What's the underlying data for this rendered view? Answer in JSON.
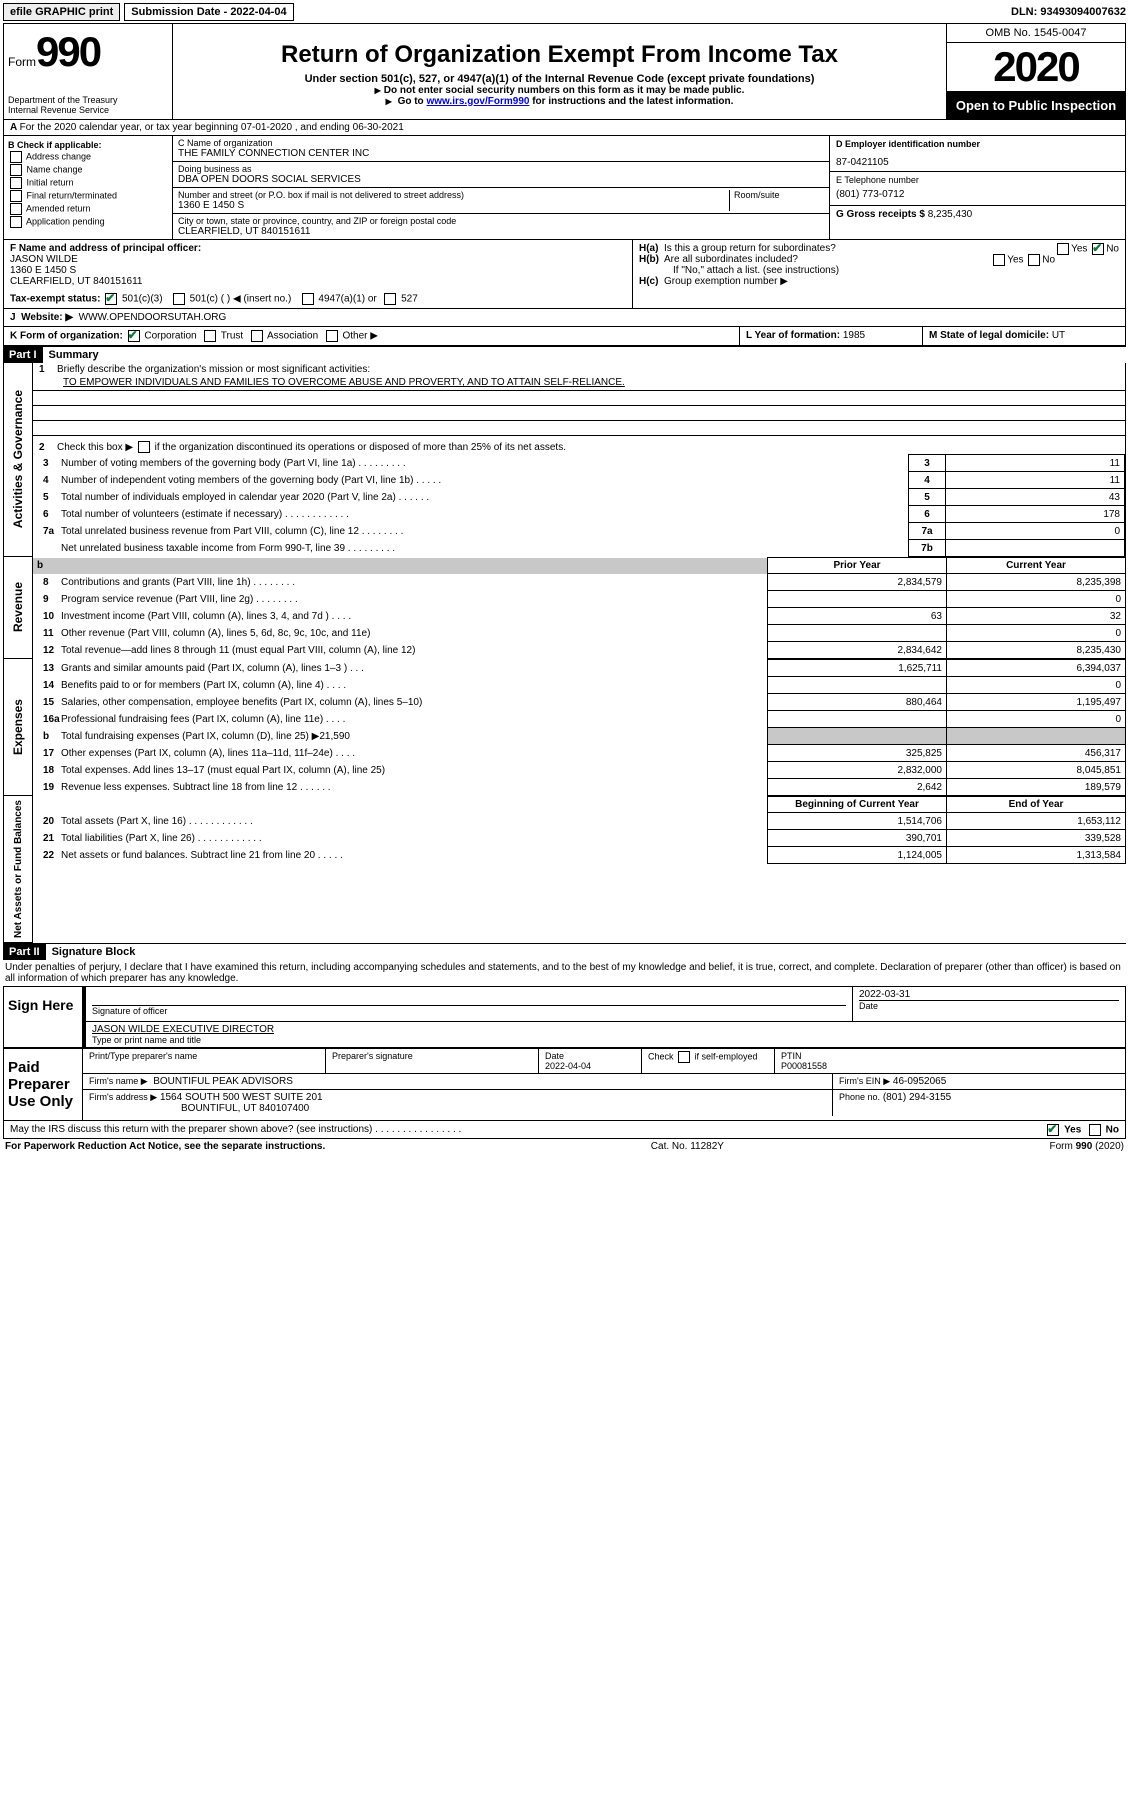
{
  "topbar": {
    "efile": "efile GRAPHIC print",
    "submission_label": "Submission Date - 2022-04-04",
    "dln": "DLN: 93493094007632"
  },
  "header": {
    "form_word": "Form",
    "form_num": "990",
    "dept1": "Department of the Treasury",
    "dept2": "Internal Revenue Service",
    "title": "Return of Organization Exempt From Income Tax",
    "sub": "Under section 501(c), 527, or 4947(a)(1) of the Internal Revenue Code (except private foundations)",
    "warn": "Do not enter social security numbers on this form as it may be made public.",
    "goto_pre": "Go to ",
    "goto_link": "www.irs.gov/Form990",
    "goto_post": " for instructions and the latest information.",
    "omb": "OMB No. 1545-0047",
    "year": "2020",
    "open": "Open to Public Inspection"
  },
  "rowA": "For the 2020 calendar year, or tax year beginning 07-01-2020    , and ending 06-30-2021",
  "B": {
    "heading": "B Check if applicable:",
    "items": [
      "Address change",
      "Name change",
      "Initial return",
      "Final return/terminated",
      "Amended return",
      "Application pending"
    ]
  },
  "C": {
    "name_lbl": "C Name of organization",
    "name": "THE FAMILY CONNECTION CENTER INC",
    "dba_lbl": "Doing business as",
    "dba": "DBA OPEN DOORS SOCIAL SERVICES",
    "addr_lbl1": "Number and street (or P.O. box if mail is not delivered to street address)",
    "addr_lbl2": "Room/suite",
    "addr": "1360 E 1450 S",
    "city_lbl": "City or town, state or province, country, and ZIP or foreign postal code",
    "city": "CLEARFIELD, UT  840151611"
  },
  "D": {
    "lbl": "D Employer identification number",
    "val": "87-0421105"
  },
  "E": {
    "lbl": "E Telephone number",
    "val": "(801) 773-0712"
  },
  "G": {
    "lbl": "G Gross receipts $",
    "val": "8,235,430"
  },
  "F": {
    "lbl": "F  Name and address of principal officer:",
    "name": "JASON WILDE",
    "addr1": "1360 E 1450 S",
    "addr2": "CLEARFIELD, UT  840151611"
  },
  "H": {
    "a": "Is this a group return for subordinates?",
    "b": "Are all subordinates included?",
    "b_note": "If \"No,\" attach a list. (see instructions)",
    "c": "Group exemption number ▶"
  },
  "I": {
    "lbl": "Tax-exempt status:",
    "opt1": "501(c)(3)",
    "opt2": "501(c) (   ) ◀ (insert no.)",
    "opt3": "4947(a)(1) or",
    "opt4": "527"
  },
  "J": {
    "lbl": "Website: ▶",
    "val": "WWW.OPENDOORSUTAH.ORG"
  },
  "K": {
    "lbl": "K Form of organization:",
    "corp": "Corporation",
    "trust": "Trust",
    "assoc": "Association",
    "other": "Other ▶"
  },
  "L": {
    "lbl": "L Year of formation:",
    "val": "1985"
  },
  "M": {
    "lbl": "M State of legal domicile:",
    "val": "UT"
  },
  "partI": {
    "label": "Part I",
    "title": "Summary",
    "side1": "Activities & Governance",
    "side2": "Revenue",
    "side3": "Expenses",
    "side4": "Net Assets or Fund Balances",
    "q1": "Briefly describe the organization's mission or most significant activities:",
    "q1_ans": "TO EMPOWER INDIVIDUALS AND FAMILIES TO OVERCOME ABUSE AND PROVERTY, AND TO ATTAIN SELF-RELIANCE.",
    "q2": "Check this box ▶   if the organization discontinued its operations or disposed of more than 25% of its net assets.",
    "lines_gov": [
      {
        "n": "3",
        "t": "Number of voting members of the governing body (Part VI, line 1a)   .    .    .    .    .    .    .    .    .",
        "c": "3",
        "v": "11"
      },
      {
        "n": "4",
        "t": "Number of independent voting members of the governing body (Part VI, line 1b)   .    .    .    .    .",
        "c": "4",
        "v": "11"
      },
      {
        "n": "5",
        "t": "Total number of individuals employed in calendar year 2020 (Part V, line 2a)   .    .    .    .    .    .",
        "c": "5",
        "v": "43"
      },
      {
        "n": "6",
        "t": "Total number of volunteers (estimate if necessary)   .    .    .    .    .    .    .    .    .    .    .    .",
        "c": "6",
        "v": "178"
      },
      {
        "n": "7a",
        "t": "Total unrelated business revenue from Part VIII, column (C), line 12   .    .    .    .    .    .    .    .",
        "c": "7a",
        "v": "0"
      },
      {
        "n": "",
        "t": "Net unrelated business taxable income from Form 990-T, line 39    .    .    .    .    .    .    .    .    .",
        "c": "7b",
        "v": ""
      }
    ],
    "col_prior": "Prior Year",
    "col_curr": "Current Year",
    "lines_rev": [
      {
        "n": "8",
        "t": "Contributions and grants (Part VIII, line 1h)    .    .    .    .    .    .    .    .",
        "p": "2,834,579",
        "c": "8,235,398"
      },
      {
        "n": "9",
        "t": "Program service revenue (Part VIII, line 2g)    .    .    .    .    .    .    .    .",
        "p": "",
        "c": "0"
      },
      {
        "n": "10",
        "t": "Investment income (Part VIII, column (A), lines 3, 4, and 7d )    .    .    .    .",
        "p": "63",
        "c": "32"
      },
      {
        "n": "11",
        "t": "Other revenue (Part VIII, column (A), lines 5, 6d, 8c, 9c, 10c, and 11e)",
        "p": "",
        "c": "0"
      },
      {
        "n": "12",
        "t": "Total revenue—add lines 8 through 11 (must equal Part VIII, column (A), line 12)",
        "p": "2,834,642",
        "c": "8,235,430"
      }
    ],
    "lines_exp": [
      {
        "n": "13",
        "t": "Grants and similar amounts paid (Part IX, column (A), lines 1–3 )   .    .    .",
        "p": "1,625,711",
        "c": "6,394,037"
      },
      {
        "n": "14",
        "t": "Benefits paid to or for members (Part IX, column (A), line 4)    .    .    .    .",
        "p": "",
        "c": "0"
      },
      {
        "n": "15",
        "t": "Salaries, other compensation, employee benefits (Part IX, column (A), lines 5–10)",
        "p": "880,464",
        "c": "1,195,497"
      },
      {
        "n": "16a",
        "t": "Professional fundraising fees (Part IX, column (A), line 11e)    .    .    .    .",
        "p": "",
        "c": "0"
      },
      {
        "n": "b",
        "t": "Total fundraising expenses (Part IX, column (D), line 25) ▶21,590",
        "p": "GREY",
        "c": "GREY"
      },
      {
        "n": "17",
        "t": "Other expenses (Part IX, column (A), lines 11a–11d, 11f–24e)    .    .    .    .",
        "p": "325,825",
        "c": "456,317"
      },
      {
        "n": "18",
        "t": "Total expenses. Add lines 13–17 (must equal Part IX, column (A), line 25)",
        "p": "2,832,000",
        "c": "8,045,851"
      },
      {
        "n": "19",
        "t": "Revenue less expenses. Subtract line 18 from line 12   .    .    .    .    .    .",
        "p": "2,642",
        "c": "189,579"
      }
    ],
    "col_begin": "Beginning of Current Year",
    "col_end": "End of Year",
    "lines_net": [
      {
        "n": "20",
        "t": "Total assets (Part X, line 16)    .    .    .    .    .    .    .    .    .    .    .    .",
        "p": "1,514,706",
        "c": "1,653,112"
      },
      {
        "n": "21",
        "t": "Total liabilities (Part X, line 26)    .    .    .    .    .    .    .    .    .    .    .    .",
        "p": "390,701",
        "c": "339,528"
      },
      {
        "n": "22",
        "t": "Net assets or fund balances. Subtract line 21 from line 20   .    .    .    .    .",
        "p": "1,124,005",
        "c": "1,313,584"
      }
    ]
  },
  "partII": {
    "label": "Part II",
    "title": "Signature Block",
    "penalty": "Under penalties of perjury, I declare that I have examined this return, including accompanying schedules and statements, and to the best of my knowledge and belief, it is true, correct, and complete. Declaration of preparer (other than officer) is based on all information of which preparer has any knowledge.",
    "sign_here": "Sign Here",
    "sig_officer": "Signature of officer",
    "sig_date_lbl": "Date",
    "sig_date": "2022-03-31",
    "officer_name": "JASON WILDE  EXECUTIVE DIRECTOR",
    "officer_name_lbl": "Type or print name and title",
    "paid": "Paid Preparer Use Only",
    "prep_name_lbl": "Print/Type preparer's name",
    "prep_sig_lbl": "Preparer's signature",
    "prep_date_lbl": "Date",
    "prep_date": "2022-04-04",
    "prep_check": "Check    if self-employed",
    "ptin_lbl": "PTIN",
    "ptin": "P00081558",
    "firm_name_lbl": "Firm's name    ▶",
    "firm_name": "BOUNTIFUL PEAK ADVISORS",
    "firm_ein_lbl": "Firm's EIN ▶",
    "firm_ein": "46-0952065",
    "firm_addr_lbl": "Firm's address ▶",
    "firm_addr1": "1564 SOUTH 500 WEST SUITE 201",
    "firm_addr2": "BOUNTIFUL, UT  840107400",
    "firm_phone_lbl": "Phone no.",
    "firm_phone": "(801) 294-3155",
    "discuss": "May the IRS discuss this return with the preparer shown above? (see instructions)    .    .    .    .    .    .    .    .    .    .    .    .    .    .    .    ."
  },
  "footer": {
    "left": "For Paperwork Reduction Act Notice, see the separate instructions.",
    "mid": "Cat. No. 11282Y",
    "right": "Form 990 (2020)"
  },
  "yesno": {
    "yes": "Yes",
    "no": "No"
  }
}
